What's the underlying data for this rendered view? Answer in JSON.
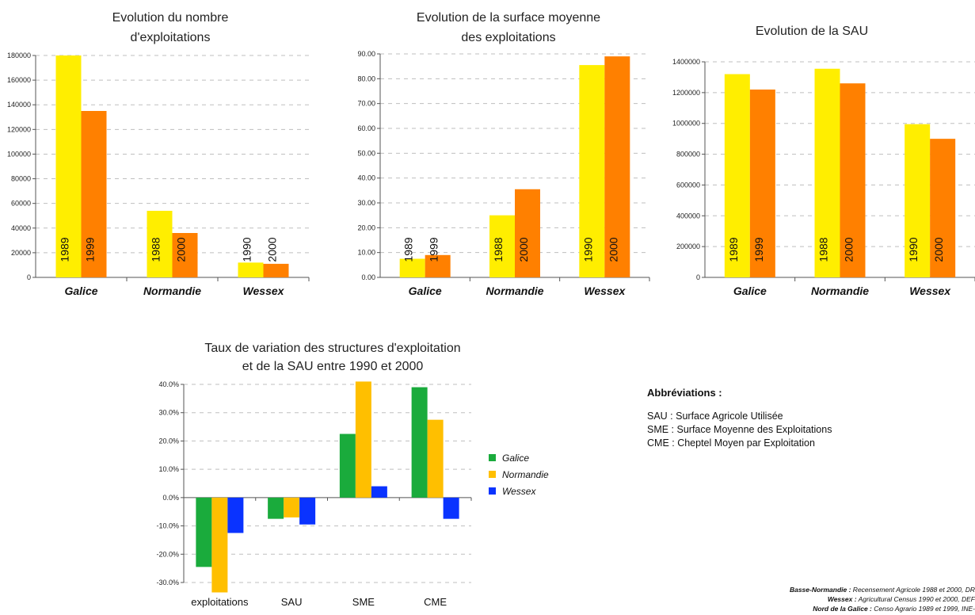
{
  "chart_data": [
    {
      "type": "bar",
      "title": [
        "Evolution du nombre",
        "d'exploitations"
      ],
      "categories": [
        "Galice",
        "Normandie",
        "Wessex"
      ],
      "ticks": [
        "0",
        "20000",
        "40000",
        "60000",
        "80000",
        "100000",
        "120000",
        "140000",
        "160000",
        "180000"
      ],
      "ylim": [
        0,
        180000
      ],
      "bars": [
        [
          {
            "label": "1989",
            "value": 180000,
            "color": "#ffee00"
          },
          {
            "label": "1999",
            "value": 135000,
            "color": "#ff8000"
          }
        ],
        [
          {
            "label": "1988",
            "value": 54000,
            "color": "#ffee00"
          },
          {
            "label": "2000",
            "value": 36000,
            "color": "#ff8000"
          }
        ],
        [
          {
            "label": "1990",
            "value": 12000,
            "color": "#ffee00"
          },
          {
            "label": "2000",
            "value": 11000,
            "color": "#ff8000"
          }
        ]
      ]
    },
    {
      "type": "bar",
      "title": [
        "Evolution de la surface moyenne",
        "des exploitations"
      ],
      "categories": [
        "Galice",
        "Normandie",
        "Wessex"
      ],
      "ticks": [
        "0.00",
        "10.00",
        "20.00",
        "30.00",
        "40.00",
        "50.00",
        "60.00",
        "70.00",
        "80.00",
        "90.00"
      ],
      "ylim": [
        0,
        90
      ],
      "bars": [
        [
          {
            "label": "1989",
            "value": 7.5,
            "color": "#ffee00"
          },
          {
            "label": "1999",
            "value": 9.0,
            "color": "#ff8000"
          }
        ],
        [
          {
            "label": "1988",
            "value": 25.0,
            "color": "#ffee00"
          },
          {
            "label": "2000",
            "value": 35.5,
            "color": "#ff8000"
          }
        ],
        [
          {
            "label": "1990",
            "value": 85.5,
            "color": "#ffee00"
          },
          {
            "label": "2000",
            "value": 89.0,
            "color": "#ff8000"
          }
        ]
      ]
    },
    {
      "type": "bar",
      "title": [
        "Evolution de la SAU"
      ],
      "categories": [
        "Galice",
        "Normandie",
        "Wessex"
      ],
      "ticks": [
        "0",
        "200000",
        "400000",
        "600000",
        "800000",
        "1000000",
        "1200000",
        "1400000"
      ],
      "ylim": [
        0,
        1400000
      ],
      "bars": [
        [
          {
            "label": "1989",
            "value": 1320000,
            "color": "#ffee00"
          },
          {
            "label": "1999",
            "value": 1220000,
            "color": "#ff8000"
          }
        ],
        [
          {
            "label": "1988",
            "value": 1355000,
            "color": "#ffee00"
          },
          {
            "label": "2000",
            "value": 1260000,
            "color": "#ff8000"
          }
        ],
        [
          {
            "label": "1990",
            "value": 995000,
            "color": "#ffee00"
          },
          {
            "label": "2000",
            "value": 900000,
            "color": "#ff8000"
          }
        ]
      ]
    },
    {
      "type": "bar",
      "title": [
        "Taux de variation des structures d'exploitation",
        "et de la SAU entre 1990 et 2000"
      ],
      "categories": [
        "exploitations",
        "SAU",
        "SME",
        "CME"
      ],
      "ticks": [
        "-30.0%",
        "-20.0%",
        "-10.0%",
        "0.0%",
        "10.0%",
        "20.0%",
        "30.0%",
        "40.0%"
      ],
      "ylim": [
        -30,
        40
      ],
      "legend": "right",
      "series": [
        {
          "name": "Galice",
          "color": "#1aab3c",
          "values": [
            -24.5,
            -7.5,
            22.5,
            39.0
          ]
        },
        {
          "name": "Normandie",
          "color": "#ffbf00",
          "values": [
            -33.5,
            -7.0,
            41.0,
            27.5
          ]
        },
        {
          "name": "Wessex",
          "color": "#0a33ff",
          "values": [
            -12.5,
            -9.5,
            4.0,
            -7.5
          ]
        }
      ]
    }
  ],
  "abbreviations": {
    "heading": "Abbréviations :",
    "items": [
      "SAU : Surface Agricole Utilisée",
      "SME : Surface Moyenne des Exploitations",
      "CME : Cheptel Moyen par Exploitation"
    ]
  },
  "sources": [
    {
      "region": "Basse-Normandie :",
      "text": " Recensement Agricole 1988 et 2000, DR"
    },
    {
      "region": "Wessex :",
      "text": " Agricultural Census 1990 et 2000, DEF"
    },
    {
      "region": "Nord de la Galice :",
      "text": " Censo Agrario 1989 et 1999, INE-"
    }
  ]
}
